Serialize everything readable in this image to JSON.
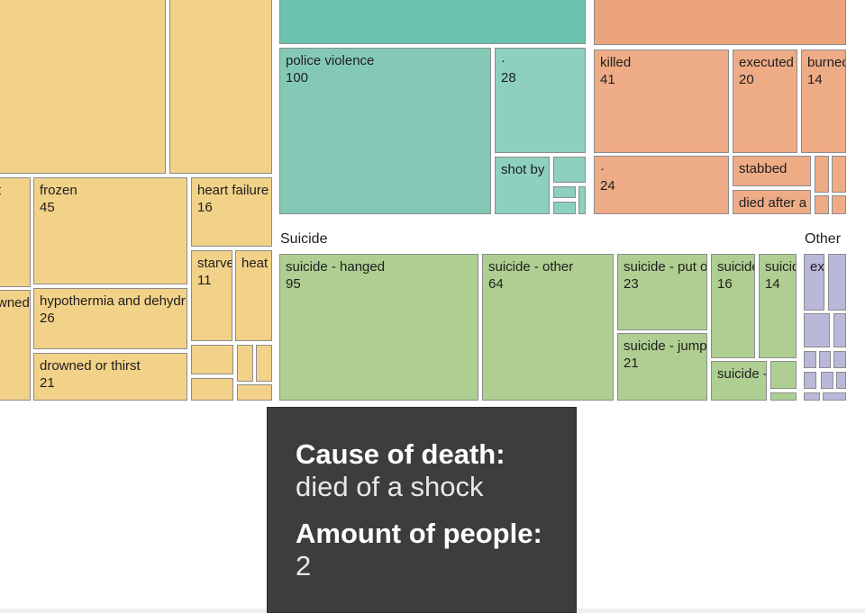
{
  "chart_data": {
    "type": "treemap",
    "colors": {
      "yellow": "#f2d188",
      "teal_dark": "#6cc3ad",
      "teal": "#84c9b6",
      "teal_light": "#8dd0bf",
      "orange_dark": "#eba37b",
      "orange": "#eeac86",
      "green": "#aecf91",
      "purple": "#b9b8d9",
      "border": "#8c8c8c"
    },
    "group_labels": [
      "Suicide",
      "Other"
    ],
    "cells": [
      {
        "label": "",
        "value": "",
        "color": "yellow"
      },
      {
        "label": "",
        "value": "",
        "color": "yellow"
      },
      {
        "label": "t",
        "value": "",
        "color": "yellow"
      },
      {
        "label": "wned",
        "value": "",
        "color": "yellow"
      },
      {
        "label": "frozen",
        "value": "45",
        "color": "yellow"
      },
      {
        "label": "hypothermia and dehydr",
        "value": "26",
        "color": "yellow"
      },
      {
        "label": "drowned or thirst",
        "value": "21",
        "color": "yellow"
      },
      {
        "label": "heart failure",
        "value": "16",
        "color": "yellow"
      },
      {
        "label": "starve",
        "value": "11",
        "color": "yellow"
      },
      {
        "label": "heat",
        "value": "",
        "color": "yellow"
      },
      {
        "label": "",
        "value": "",
        "color": "yellow"
      },
      {
        "label": "",
        "value": "",
        "color": "yellow"
      },
      {
        "label": "",
        "value": "",
        "color": "yellow"
      },
      {
        "label": "",
        "value": "",
        "color": "yellow"
      },
      {
        "label": "",
        "value": "",
        "color": "yellow"
      },
      {
        "label": "",
        "value": "",
        "color": "teal_dark"
      },
      {
        "label": "police violence",
        "value": "100",
        "color": "teal"
      },
      {
        "label": "·",
        "value": "28",
        "color": "teal_light"
      },
      {
        "label": "shot by",
        "value": "",
        "color": "teal_light"
      },
      {
        "label": "",
        "value": "",
        "color": "teal_light"
      },
      {
        "label": "",
        "value": "",
        "color": "teal_light"
      },
      {
        "label": "",
        "value": "",
        "color": "teal_light"
      },
      {
        "label": "",
        "value": "",
        "color": "teal_light"
      },
      {
        "label": "",
        "value": "",
        "color": "orange_dark"
      },
      {
        "label": "killed",
        "value": "41",
        "color": "orange"
      },
      {
        "label": "executed",
        "value": "20",
        "color": "orange"
      },
      {
        "label": "burned",
        "value": "14",
        "color": "orange"
      },
      {
        "label": "·",
        "value": "24",
        "color": "orange"
      },
      {
        "label": "stabbed",
        "value": "",
        "color": "orange"
      },
      {
        "label": "died after a",
        "value": "",
        "color": "orange"
      },
      {
        "label": "",
        "value": "",
        "color": "orange"
      },
      {
        "label": "",
        "value": "",
        "color": "orange"
      },
      {
        "label": "",
        "value": "",
        "color": "orange"
      },
      {
        "label": "",
        "value": "",
        "color": "orange"
      },
      {
        "label": "suicide - hanged",
        "value": "95",
        "color": "green"
      },
      {
        "label": "suicide - other",
        "value": "64",
        "color": "green"
      },
      {
        "label": "suicide - put o",
        "value": "23",
        "color": "green"
      },
      {
        "label": "suicide - jump",
        "value": "21",
        "color": "green"
      },
      {
        "label": "suicide",
        "value": "16",
        "color": "green"
      },
      {
        "label": "suicide",
        "value": "14",
        "color": "green"
      },
      {
        "label": "suicide -",
        "value": "",
        "color": "green"
      },
      {
        "label": "",
        "value": "",
        "color": "green"
      },
      {
        "label": "",
        "value": "",
        "color": "green"
      },
      {
        "label": "ex",
        "value": "",
        "color": "purple"
      },
      {
        "label": "",
        "value": "",
        "color": "purple"
      },
      {
        "label": "",
        "value": "",
        "color": "purple"
      },
      {
        "label": "",
        "value": "",
        "color": "purple"
      },
      {
        "label": "",
        "value": "",
        "color": "purple"
      },
      {
        "label": "",
        "value": "",
        "color": "purple"
      },
      {
        "label": "",
        "value": "",
        "color": "purple"
      },
      {
        "label": "",
        "value": "",
        "color": "purple"
      },
      {
        "label": "",
        "value": "",
        "color": "purple"
      },
      {
        "label": "",
        "value": "",
        "color": "purple"
      },
      {
        "label": "",
        "value": "",
        "color": "purple"
      },
      {
        "label": "",
        "value": "",
        "color": "purple"
      }
    ]
  },
  "tooltip": {
    "cause_key": "Cause of death:",
    "cause_value": "died of a shock",
    "amount_key": "Amount of people:",
    "amount_value": "2"
  }
}
